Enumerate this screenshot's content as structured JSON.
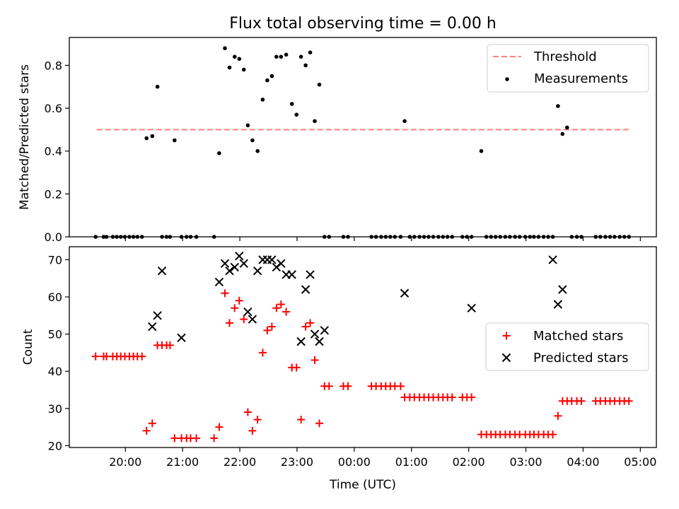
{
  "title": "Flux total observing time = 0.00 h",
  "colors": {
    "threshold": "#ff7f7f",
    "measurement": "#000000",
    "matched": "#ff0000",
    "predicted": "#000000"
  },
  "chart_data": [
    {
      "type": "scatter",
      "ylabel": "Matched/Predicted stars",
      "ylim": [
        0,
        0.93
      ],
      "yticks": [
        "0.0",
        "0.2",
        "0.4",
        "0.6",
        "0.8"
      ],
      "xlim": [
        -0.98,
        9.28
      ],
      "legend": {
        "placement": "top-right",
        "entries": [
          "Threshold",
          "Measurements"
        ]
      },
      "threshold": {
        "name": "Threshold",
        "value": 0.5,
        "x": [
          -0.5,
          8.82
        ]
      },
      "series": [
        {
          "name": "Measurements",
          "x": [
            -0.52,
            -0.38,
            -0.33,
            -0.22,
            -0.15,
            -0.08,
            -0.01,
            0.07,
            0.14,
            0.21,
            0.29,
            0.37,
            0.47,
            0.56,
            0.64,
            0.72,
            0.78,
            0.86,
            0.98,
            1.07,
            1.14,
            1.24,
            1.55,
            1.64,
            1.74,
            1.82,
            1.91,
            1.99,
            2.07,
            2.14,
            2.22,
            2.31,
            2.4,
            2.48,
            2.56,
            2.64,
            2.72,
            2.81,
            2.91,
            2.99,
            3.07,
            3.15,
            3.23,
            3.31,
            3.39,
            3.48,
            3.56,
            3.81,
            3.89,
            4.3,
            4.38,
            4.47,
            4.55,
            4.63,
            4.71,
            4.81,
            4.88,
            4.97,
            5.05,
            5.14,
            5.22,
            5.3,
            5.38,
            5.47,
            5.55,
            5.63,
            5.71,
            5.89,
            5.97,
            6.05,
            6.22,
            6.31,
            6.39,
            6.47,
            6.55,
            6.64,
            6.72,
            6.81,
            6.89,
            6.99,
            7.07,
            7.14,
            7.22,
            7.31,
            7.39,
            7.47,
            7.56,
            7.64,
            7.72,
            7.8,
            7.89,
            7.97,
            8.22,
            8.3,
            8.39,
            8.47,
            8.55,
            8.64,
            8.72,
            8.8
          ],
          "y": [
            0,
            0,
            0,
            0,
            0,
            0,
            0,
            0,
            0,
            0,
            0,
            0.46,
            0.47,
            0.7,
            0,
            0,
            0,
            0.45,
            0,
            0,
            0,
            0,
            0,
            0.39,
            0.88,
            0.79,
            0.84,
            0.83,
            0.78,
            0.52,
            0.45,
            0.4,
            0.64,
            0.73,
            0.75,
            0.84,
            0.84,
            0.85,
            0.62,
            0.57,
            0.84,
            0.8,
            0.86,
            0.54,
            0.71,
            0,
            0,
            0,
            0,
            0,
            0,
            0,
            0,
            0,
            0,
            0,
            0.54,
            0,
            0,
            0,
            0,
            0,
            0,
            0,
            0,
            0,
            0,
            0,
            0,
            0,
            0.4,
            0,
            0,
            0,
            0,
            0,
            0,
            0,
            0,
            0,
            0,
            0,
            0,
            0,
            0,
            0,
            0.61,
            0.48,
            0.51,
            0,
            0,
            0,
            0,
            0,
            0,
            0,
            0,
            0,
            0,
            0
          ]
        }
      ]
    },
    {
      "type": "scatter",
      "ylabel": "Count",
      "xlabel": "Time (UTC)",
      "ylim": [
        19.5,
        73.5
      ],
      "yticks": [
        "20",
        "30",
        "40",
        "50",
        "60",
        "70"
      ],
      "xlim": [
        -0.98,
        9.28
      ],
      "xticks": [
        "20:00",
        "21:00",
        "22:00",
        "23:00",
        "00:00",
        "01:00",
        "02:00",
        "03:00",
        "04:00",
        "05:00"
      ],
      "legend": {
        "placement": "center-right",
        "entries": [
          "Matched stars",
          "Predicted stars"
        ]
      },
      "series": [
        {
          "name": "Matched stars",
          "x": [
            -0.52,
            -0.38,
            -0.33,
            -0.22,
            -0.15,
            -0.08,
            -0.01,
            0.07,
            0.14,
            0.21,
            0.29,
            0.37,
            0.47,
            0.56,
            0.64,
            0.72,
            0.78,
            0.86,
            0.98,
            1.07,
            1.14,
            1.24,
            1.55,
            1.64,
            1.74,
            1.82,
            1.91,
            1.99,
            2.07,
            2.14,
            2.22,
            2.31,
            2.4,
            2.48,
            2.56,
            2.64,
            2.72,
            2.81,
            2.91,
            2.99,
            3.07,
            3.15,
            3.23,
            3.31,
            3.39,
            3.48,
            3.56,
            3.81,
            3.89,
            4.3,
            4.38,
            4.47,
            4.55,
            4.63,
            4.71,
            4.81,
            4.88,
            4.97,
            5.05,
            5.14,
            5.22,
            5.3,
            5.38,
            5.47,
            5.55,
            5.63,
            5.71,
            5.89,
            5.97,
            6.05,
            6.22,
            6.31,
            6.39,
            6.47,
            6.55,
            6.64,
            6.72,
            6.81,
            6.89,
            6.99,
            7.07,
            7.14,
            7.22,
            7.31,
            7.39,
            7.47,
            7.56,
            7.64,
            7.72,
            7.8,
            7.89,
            7.97,
            8.22,
            8.3,
            8.39,
            8.47,
            8.55,
            8.64,
            8.72,
            8.8
          ],
          "y": [
            44,
            44,
            44,
            44,
            44,
            44,
            44,
            44,
            44,
            44,
            44,
            24,
            26,
            47,
            47,
            47,
            47,
            22,
            22,
            22,
            22,
            22,
            22,
            25,
            61,
            53,
            57,
            59,
            54,
            29,
            24,
            27,
            45,
            51,
            52,
            57,
            58,
            56,
            41,
            41,
            27,
            52,
            53,
            43,
            26,
            36,
            36,
            36,
            36,
            36,
            36,
            36,
            36,
            36,
            36,
            36,
            33,
            33,
            33,
            33,
            33,
            33,
            33,
            33,
            33,
            33,
            33,
            33,
            33,
            33,
            23,
            23,
            23,
            23,
            23,
            23,
            23,
            23,
            23,
            23,
            23,
            23,
            23,
            23,
            23,
            23,
            28,
            32,
            32,
            32,
            32,
            32,
            32,
            32,
            32,
            32,
            32,
            32,
            32,
            32
          ]
        },
        {
          "name": "Predicted stars",
          "x": [
            0.47,
            0.56,
            0.64,
            0.98,
            1.64,
            1.74,
            1.82,
            1.91,
            1.99,
            2.07,
            2.14,
            2.22,
            2.31,
            2.4,
            2.48,
            2.56,
            2.64,
            2.72,
            2.81,
            2.91,
            3.07,
            3.15,
            3.23,
            3.31,
            3.39,
            3.48,
            4.88,
            6.05,
            7.47,
            7.56,
            7.64
          ],
          "y": [
            52,
            55,
            67,
            49,
            64,
            69,
            67,
            68,
            71,
            69,
            56,
            54,
            67,
            70,
            70,
            70,
            68,
            69,
            66,
            66,
            48,
            62,
            66,
            50,
            48,
            51,
            61,
            57,
            70,
            58,
            62
          ]
        }
      ]
    }
  ]
}
